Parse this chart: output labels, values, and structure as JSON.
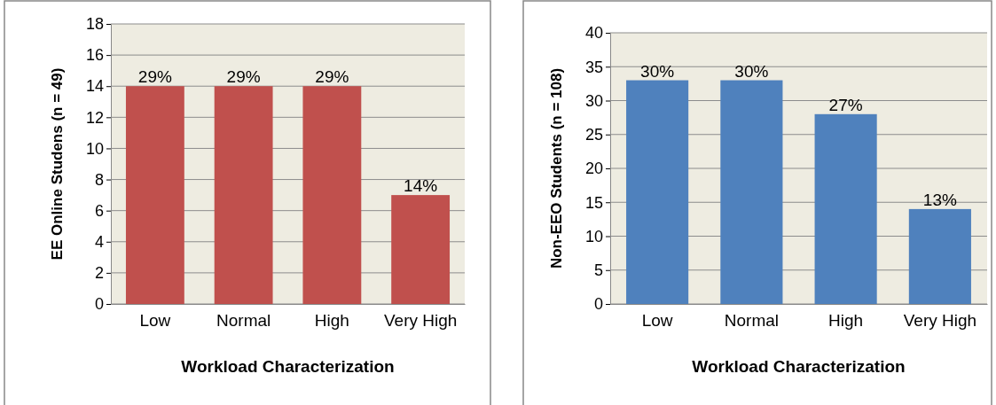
{
  "chart_data": [
    {
      "type": "bar",
      "xlabel": "Workload Characterization",
      "ylabel": "EE Online Studens  (n = 49)",
      "categories": [
        "Low",
        "Normal",
        "High",
        "Very High"
      ],
      "values": [
        14,
        14,
        14,
        7
      ],
      "color": "#c0504d",
      "ylim": [
        0,
        18
      ],
      "yticks": [
        0,
        2,
        4,
        6,
        8,
        10,
        12,
        14,
        16,
        18
      ],
      "grid": "y",
      "annotations": [
        {
          "text": "29%",
          "x": "Low",
          "y": 14
        },
        {
          "text": "29%",
          "x": "Normal",
          "y": 14
        },
        {
          "text": "29%",
          "x": "High",
          "y": 14
        },
        {
          "text": "14%",
          "x": "Very High",
          "y": 7
        }
      ]
    },
    {
      "type": "bar",
      "xlabel": "Workload Characterization",
      "ylabel": "Non-EEO Students  (n = 108)",
      "categories": [
        "Low",
        "Normal",
        "High",
        "Very High"
      ],
      "values": [
        33,
        33,
        28,
        14
      ],
      "color": "#4f81bd",
      "ylim": [
        0,
        40
      ],
      "yticks": [
        0,
        5,
        10,
        15,
        20,
        25,
        30,
        35,
        40
      ],
      "grid": "y",
      "annotations": [
        {
          "text": "30%",
          "x": "Low",
          "y": 33
        },
        {
          "text": "30%",
          "x": "Normal",
          "y": 33
        },
        {
          "text": "27%",
          "x": "High",
          "y": 28
        },
        {
          "text": "13%",
          "x": "Very High",
          "y": 14
        }
      ]
    }
  ]
}
